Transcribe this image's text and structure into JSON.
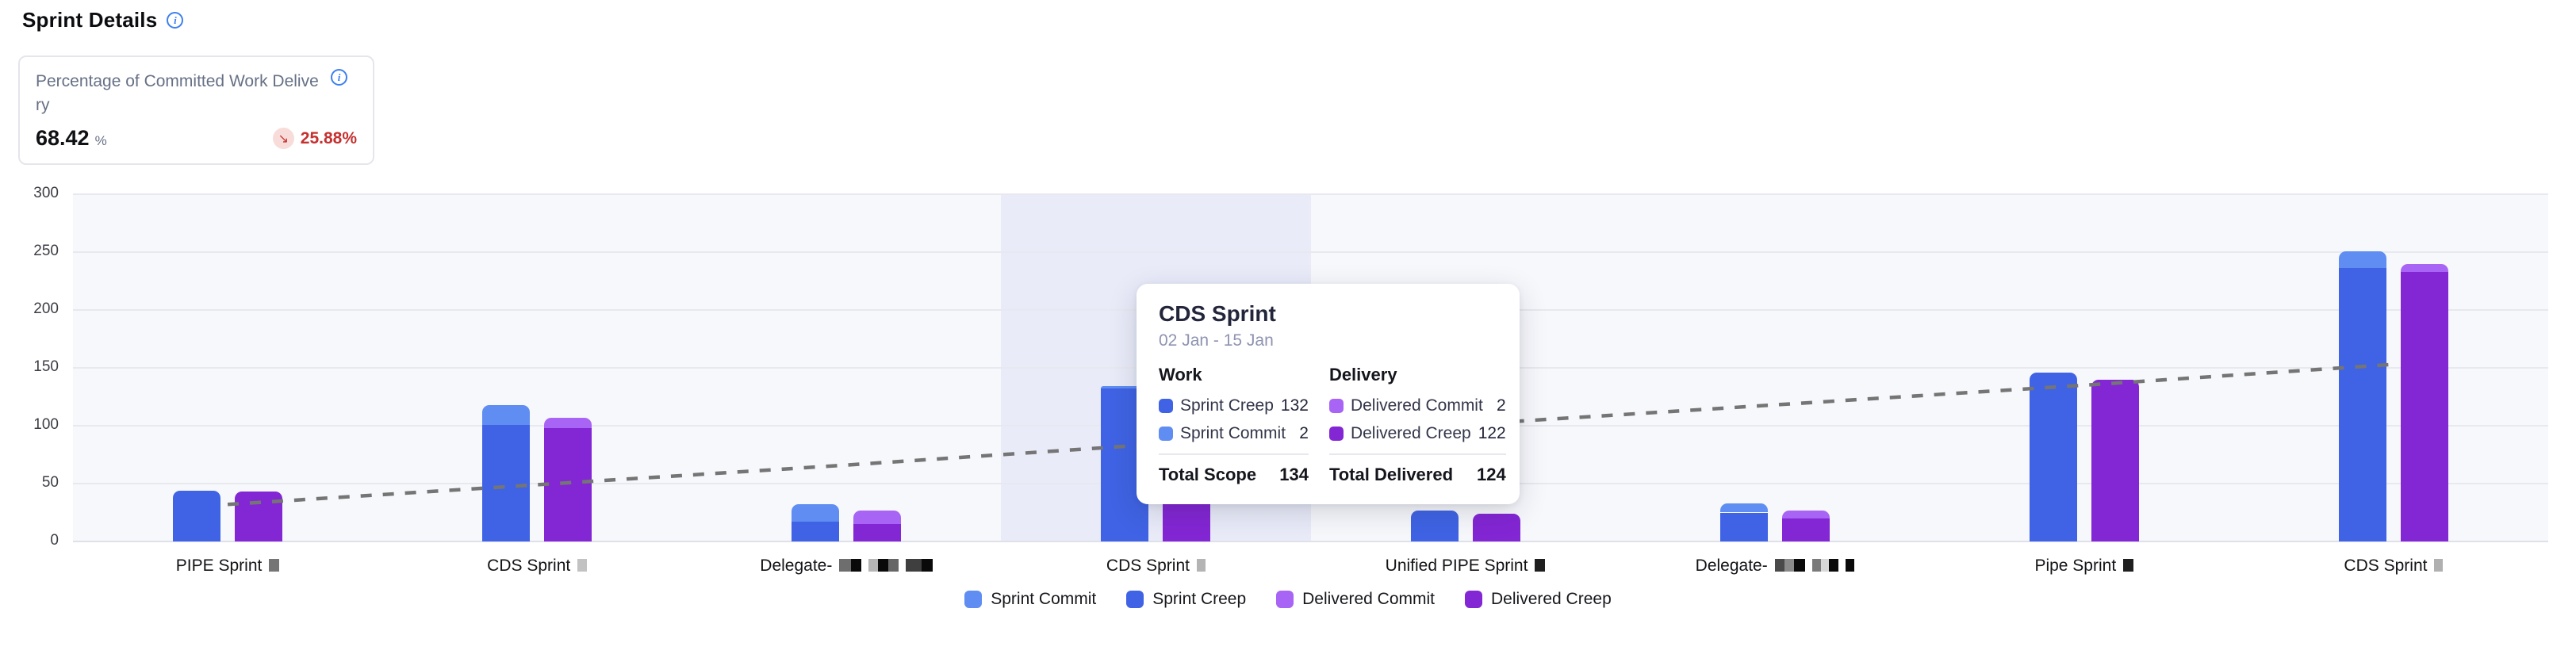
{
  "page": {
    "title": "Sprint Details"
  },
  "kpi_card": {
    "title": "Percentage of Committed Work Delivery",
    "value": "68.42",
    "unit": "%",
    "trend_direction": "down",
    "trend_value": "25.88%",
    "trend_color": "#c53030"
  },
  "chart_data": {
    "type": "bar",
    "subtype": "grouped-stacked",
    "title": "Sprint Details",
    "xlabel": "",
    "ylabel": "",
    "ylim": [
      0,
      300
    ],
    "yticks": [
      0,
      50,
      100,
      150,
      200,
      250,
      300
    ],
    "grid": true,
    "legend_position": "bottom",
    "highlighted_category_index": 3,
    "colors": {
      "sprint_commit": "#5f8df2",
      "sprint_creep": "#3f63e4",
      "delivered_commit": "#a864f4",
      "delivered_creep": "#8326d4",
      "trend_line": "#757575",
      "highlight_band": "#e9ebf9",
      "plot_bg": "#f7f8fc",
      "gridline": "#e8e9ef"
    },
    "categories": [
      {
        "label": "PIPE Sprint",
        "redactions": [
          [
            {
              "w": 13,
              "c": "#757575"
            }
          ]
        ]
      },
      {
        "label": "CDS Sprint",
        "redactions": [
          [
            {
              "w": 12,
              "c": "#c2c2c2"
            }
          ]
        ]
      },
      {
        "label": "Delegate-",
        "redactions": [
          [
            {
              "w": 15,
              "c": "#6e6e6e"
            },
            {
              "w": 13,
              "c": "#0a0a0a"
            }
          ],
          [
            {
              "w": 12,
              "c": "#b5b5b5"
            },
            {
              "w": 13,
              "c": "#0a0a0a"
            },
            {
              "w": 13,
              "c": "#666666"
            }
          ],
          [
            {
              "w": 20,
              "c": "#3f3f3f"
            },
            {
              "w": 14,
              "c": "#0a0a0a"
            }
          ]
        ]
      },
      {
        "label": "CDS Sprint",
        "redactions": [
          [
            {
              "w": 11,
              "c": "#b4b4b4"
            }
          ]
        ]
      },
      {
        "label": "Unified PIPE Sprint",
        "redactions": [
          [
            {
              "w": 13,
              "c": "#1f1f1f"
            }
          ]
        ]
      },
      {
        "label": "Delegate-",
        "redactions": [
          [
            {
              "w": 12,
              "c": "#4a4a4a"
            },
            {
              "w": 12,
              "c": "#8a8a8a"
            },
            {
              "w": 14,
              "c": "#0a0a0a"
            }
          ],
          [
            {
              "w": 11,
              "c": "#7a7a7a"
            },
            {
              "w": 10,
              "c": "#d8d8d8"
            },
            {
              "w": 12,
              "c": "#0a0a0a"
            }
          ],
          [
            {
              "w": 11,
              "c": "#0a0a0a"
            }
          ]
        ]
      },
      {
        "label": "Pipe Sprint",
        "redactions": [
          [
            {
              "w": 13,
              "c": "#1f1f1f"
            }
          ]
        ]
      },
      {
        "label": "CDS Sprint",
        "redactions": [
          [
            {
              "w": 11,
              "c": "#b0b0b0"
            }
          ]
        ]
      }
    ],
    "series": [
      {
        "name": "Sprint Commit",
        "stack": "work",
        "color": "#5f8df2",
        "values": [
          0,
          17,
          15,
          2,
          0,
          8,
          0,
          15
        ]
      },
      {
        "name": "Sprint Creep",
        "stack": "work",
        "color": "#3f63e4",
        "values": [
          44,
          101,
          17,
          132,
          27,
          25,
          146,
          236
        ]
      },
      {
        "name": "Delivered Commit",
        "stack": "delivery",
        "color": "#a864f4",
        "values": [
          0,
          9,
          12,
          2,
          0,
          7,
          0,
          7
        ]
      },
      {
        "name": "Delivered Creep",
        "stack": "delivery",
        "color": "#8326d4",
        "values": [
          43,
          98,
          15,
          122,
          24,
          20,
          140,
          233
        ]
      }
    ],
    "trend_line": {
      "style": "dashed",
      "color": "#757575",
      "values": [
        32,
        49,
        66,
        84,
        101,
        118,
        135,
        153
      ]
    },
    "legend": [
      {
        "label": "Sprint Commit",
        "color": "#5f8df2"
      },
      {
        "label": "Sprint Creep",
        "color": "#3f63e4"
      },
      {
        "label": "Delivered Commit",
        "color": "#a864f4"
      },
      {
        "label": "Delivered Creep",
        "color": "#8326d4"
      }
    ]
  },
  "tooltip": {
    "title": "CDS Sprint",
    "date_range": "02 Jan - 15 Jan",
    "work": {
      "header": "Work",
      "rows": [
        {
          "label": "Sprint Creep",
          "value": 132,
          "color": "#3f63e4"
        },
        {
          "label": "Sprint Commit",
          "value": 2,
          "color": "#5f8df2"
        }
      ],
      "total_label": "Total Scope",
      "total_value": 134
    },
    "delivery": {
      "header": "Delivery",
      "rows": [
        {
          "label": "Delivered Commit",
          "value": 2,
          "color": "#a864f4"
        },
        {
          "label": "Delivered Creep",
          "value": 122,
          "color": "#8326d4"
        }
      ],
      "total_label": "Total Delivered",
      "total_value": 124
    }
  }
}
